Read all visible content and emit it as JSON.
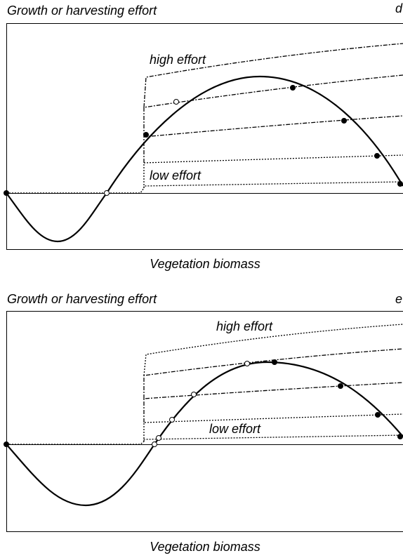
{
  "panels": [
    {
      "label": "d",
      "y_axis_label": "Growth or harvesting effort",
      "x_axis_label": "Vegetation biomass",
      "high_label": "high effort",
      "low_label": "low effort"
    },
    {
      "label": "e",
      "y_axis_label": "Growth or harvesting effort",
      "x_axis_label": "Vegetation biomass",
      "high_label": "high effort",
      "low_label": "low effort"
    }
  ]
}
